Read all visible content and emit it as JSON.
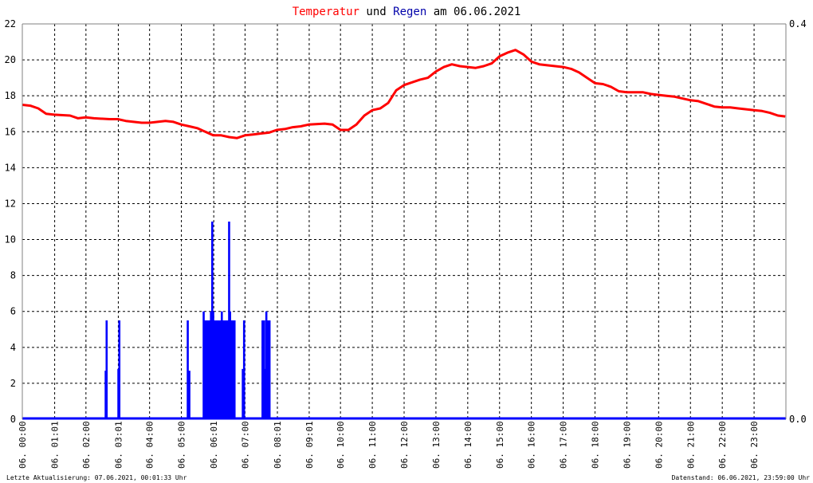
{
  "title": {
    "part1": "Temperatur",
    "part2": "und",
    "part3": "Regen",
    "part4": "am 06.06.2021",
    "color1": "#ff0000",
    "color3": "#0000aa"
  },
  "footer": {
    "left": "Letzte Aktualisierung: 07.06.2021, 00:01:33 Uhr",
    "right": "Datenstand: 06.06.2021, 23:59:00 Uhr"
  },
  "colors": {
    "temperature": "#ff0000",
    "rain": "#0000ff",
    "grid": "#000000",
    "frame": "#808080"
  },
  "chart_data": {
    "type": "line",
    "title": "Temperatur und Regen am 06.06.2021",
    "grid": true,
    "x_unit": "hours",
    "xlim": [
      0,
      24
    ],
    "x_ticks": [
      {
        "x": 0,
        "label": "06. 00:00"
      },
      {
        "x": 1.017,
        "label": "06. 01:01"
      },
      {
        "x": 2,
        "label": "06. 02:00"
      },
      {
        "x": 3.017,
        "label": "06. 03:01"
      },
      {
        "x": 4,
        "label": "06. 04:00"
      },
      {
        "x": 5,
        "label": "06. 05:00"
      },
      {
        "x": 6.017,
        "label": "06. 06:01"
      },
      {
        "x": 7,
        "label": "06. 07:00"
      },
      {
        "x": 8.017,
        "label": "06. 08:01"
      },
      {
        "x": 9.017,
        "label": "06. 09:01"
      },
      {
        "x": 10,
        "label": "06. 10:00"
      },
      {
        "x": 11,
        "label": "06. 11:00"
      },
      {
        "x": 12,
        "label": "06. 12:00"
      },
      {
        "x": 13,
        "label": "06. 13:00"
      },
      {
        "x": 14,
        "label": "06. 14:00"
      },
      {
        "x": 15,
        "label": "06. 15:00"
      },
      {
        "x": 16,
        "label": "06. 16:00"
      },
      {
        "x": 17,
        "label": "06. 17:00"
      },
      {
        "x": 18,
        "label": "06. 18:00"
      },
      {
        "x": 19,
        "label": "06. 19:00"
      },
      {
        "x": 20,
        "label": "06. 20:00"
      },
      {
        "x": 21,
        "label": "06. 21:00"
      },
      {
        "x": 22,
        "label": "06. 22:00"
      },
      {
        "x": 23,
        "label": "06. 23:00"
      }
    ],
    "y_left": {
      "ylim": [
        0,
        22
      ],
      "ticks": [
        "0",
        "2",
        "4",
        "6",
        "8",
        "10",
        "12",
        "14",
        "16",
        "18",
        "20",
        "22"
      ]
    },
    "y_right": {
      "ylim": [
        0,
        0.4
      ],
      "ticks": [
        "0.0",
        "0.4"
      ]
    },
    "series": [
      {
        "name": "Temperatur",
        "axis": "left",
        "points": [
          [
            0,
            17.5
          ],
          [
            0.25,
            17.45
          ],
          [
            0.5,
            17.3
          ],
          [
            0.75,
            17.0
          ],
          [
            1,
            16.95
          ],
          [
            1.5,
            16.9
          ],
          [
            1.75,
            16.75
          ],
          [
            2,
            16.8
          ],
          [
            2.25,
            16.75
          ],
          [
            2.75,
            16.7
          ],
          [
            3,
            16.7
          ],
          [
            3.25,
            16.6
          ],
          [
            3.5,
            16.55
          ],
          [
            3.75,
            16.5
          ],
          [
            4,
            16.5
          ],
          [
            4.25,
            16.55
          ],
          [
            4.5,
            16.6
          ],
          [
            4.75,
            16.55
          ],
          [
            5,
            16.4
          ],
          [
            5.25,
            16.3
          ],
          [
            5.5,
            16.2
          ],
          [
            5.75,
            16.0
          ],
          [
            6,
            15.8
          ],
          [
            6.25,
            15.8
          ],
          [
            6.5,
            15.7
          ],
          [
            6.75,
            15.65
          ],
          [
            7,
            15.8
          ],
          [
            7.25,
            15.85
          ],
          [
            7.5,
            15.9
          ],
          [
            7.75,
            15.95
          ],
          [
            8,
            16.1
          ],
          [
            8.25,
            16.15
          ],
          [
            8.5,
            16.25
          ],
          [
            8.75,
            16.3
          ],
          [
            9,
            16.4
          ],
          [
            9.5,
            16.45
          ],
          [
            9.75,
            16.4
          ],
          [
            10,
            16.1
          ],
          [
            10.25,
            16.1
          ],
          [
            10.5,
            16.4
          ],
          [
            10.75,
            16.9
          ],
          [
            11,
            17.2
          ],
          [
            11.25,
            17.3
          ],
          [
            11.5,
            17.6
          ],
          [
            11.75,
            18.3
          ],
          [
            12,
            18.6
          ],
          [
            12.25,
            18.75
          ],
          [
            12.5,
            18.9
          ],
          [
            12.75,
            19.0
          ],
          [
            13,
            19.35
          ],
          [
            13.25,
            19.6
          ],
          [
            13.5,
            19.75
          ],
          [
            13.75,
            19.65
          ],
          [
            14,
            19.6
          ],
          [
            14.25,
            19.55
          ],
          [
            14.5,
            19.65
          ],
          [
            14.75,
            19.8
          ],
          [
            15,
            20.2
          ],
          [
            15.25,
            20.4
          ],
          [
            15.5,
            20.55
          ],
          [
            15.75,
            20.3
          ],
          [
            16,
            19.9
          ],
          [
            16.25,
            19.75
          ],
          [
            16.5,
            19.7
          ],
          [
            17,
            19.6
          ],
          [
            17.25,
            19.5
          ],
          [
            17.5,
            19.3
          ],
          [
            17.75,
            19.0
          ],
          [
            18,
            18.7
          ],
          [
            18.25,
            18.65
          ],
          [
            18.5,
            18.5
          ],
          [
            18.75,
            18.25
          ],
          [
            19,
            18.2
          ],
          [
            19.25,
            18.2
          ],
          [
            19.5,
            18.2
          ],
          [
            19.75,
            18.1
          ],
          [
            20,
            18.05
          ],
          [
            20.25,
            18.0
          ],
          [
            20.5,
            17.95
          ],
          [
            20.75,
            17.85
          ],
          [
            21,
            17.75
          ],
          [
            21.25,
            17.7
          ],
          [
            21.5,
            17.55
          ],
          [
            21.75,
            17.4
          ],
          [
            22,
            17.35
          ],
          [
            22.25,
            17.35
          ],
          [
            22.5,
            17.3
          ],
          [
            22.75,
            17.25
          ],
          [
            23,
            17.2
          ],
          [
            23.25,
            17.15
          ],
          [
            23.5,
            17.05
          ],
          [
            23.75,
            16.9
          ],
          [
            23.98,
            16.85
          ]
        ]
      },
      {
        "name": "Regen",
        "axis": "left",
        "bars": [
          [
            2.62,
            2.7
          ],
          [
            2.65,
            5.5
          ],
          [
            3.02,
            2.8
          ],
          [
            3.05,
            5.5
          ],
          [
            5.2,
            5.5
          ],
          [
            5.25,
            2.7
          ],
          [
            5.7,
            6.0
          ],
          [
            5.73,
            5.5
          ],
          [
            5.77,
            5.5
          ],
          [
            5.8,
            5.5
          ],
          [
            5.83,
            5.5
          ],
          [
            5.87,
            5.5
          ],
          [
            5.9,
            5.5
          ],
          [
            5.93,
            6.0
          ],
          [
            5.97,
            11.0
          ],
          [
            6.0,
            6.0
          ],
          [
            6.03,
            5.5
          ],
          [
            6.07,
            5.5
          ],
          [
            6.1,
            5.5
          ],
          [
            6.13,
            5.5
          ],
          [
            6.17,
            5.5
          ],
          [
            6.2,
            5.5
          ],
          [
            6.23,
            5.5
          ],
          [
            6.27,
            6.0
          ],
          [
            6.3,
            5.5
          ],
          [
            6.33,
            5.5
          ],
          [
            6.37,
            5.5
          ],
          [
            6.4,
            5.5
          ],
          [
            6.43,
            5.5
          ],
          [
            6.47,
            5.5
          ],
          [
            6.5,
            11.0
          ],
          [
            6.53,
            6.0
          ],
          [
            6.57,
            5.5
          ],
          [
            6.6,
            5.5
          ],
          [
            6.63,
            5.5
          ],
          [
            6.67,
            5.5
          ],
          [
            6.93,
            2.8
          ],
          [
            6.97,
            5.5
          ],
          [
            7.55,
            5.5
          ],
          [
            7.6,
            5.5
          ],
          [
            7.63,
            2.8
          ],
          [
            7.67,
            6.0
          ],
          [
            7.7,
            5.5
          ],
          [
            7.73,
            5.5
          ],
          [
            7.77,
            5.5
          ]
        ]
      }
    ]
  }
}
